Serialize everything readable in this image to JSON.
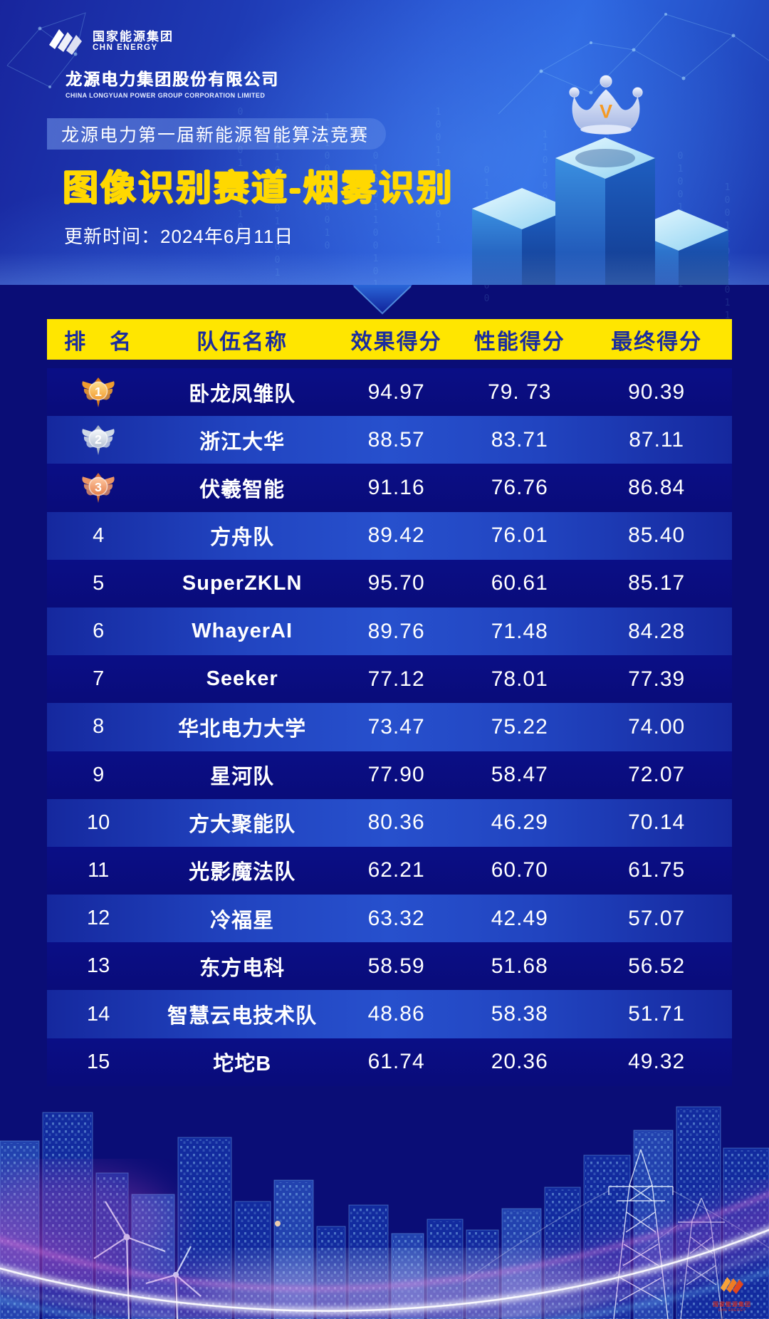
{
  "brand": {
    "group_cn": "国家能源集团",
    "group_en": "CHN ENERGY",
    "company_cn": "龙源电力集团股份有限公司",
    "company_en": "CHINA LONGYUAN POWER GROUP CORPORATION LIMITED"
  },
  "hero": {
    "competition_pill": "龙源电力第一届新能源智能算法竞赛",
    "title": "图像识别赛道-烟雾识别",
    "update_time": "更新时间：2024年6月11日",
    "crown_letter": "V"
  },
  "leaderboard": {
    "headers": {
      "rank": "排　名",
      "team": "队伍名称",
      "effect": "效果得分",
      "performance": "性能得分",
      "final": "最终得分"
    },
    "rows": [
      {
        "rank": "1",
        "medal": "gold",
        "team": "卧龙凤雏队",
        "effect": "94.97",
        "performance": "79. 73",
        "final": "90.39"
      },
      {
        "rank": "2",
        "medal": "silver",
        "team": "浙江大华",
        "effect": "88.57",
        "performance": "83.71",
        "final": "87.11"
      },
      {
        "rank": "3",
        "medal": "bronze",
        "team": "伏羲智能",
        "effect": "91.16",
        "performance": "76.76",
        "final": "86.84"
      },
      {
        "rank": "4",
        "medal": null,
        "team": "方舟队",
        "effect": "89.42",
        "performance": "76.01",
        "final": "85.40"
      },
      {
        "rank": "5",
        "medal": null,
        "team": "SuperZKLN",
        "effect": "95.70",
        "performance": "60.61",
        "final": "85.17"
      },
      {
        "rank": "6",
        "medal": null,
        "team": "WhayerAI",
        "effect": "89.76",
        "performance": "71.48",
        "final": "84.28"
      },
      {
        "rank": "7",
        "medal": null,
        "team": "Seeker",
        "effect": "77.12",
        "performance": "78.01",
        "final": "77.39"
      },
      {
        "rank": "8",
        "medal": null,
        "team": "华北电力大学",
        "effect": "73.47",
        "performance": "75.22",
        "final": "74.00"
      },
      {
        "rank": "9",
        "medal": null,
        "team": "星河队",
        "effect": "77.90",
        "performance": "58.47",
        "final": "72.07"
      },
      {
        "rank": "10",
        "medal": null,
        "team": "方大聚能队",
        "effect": "80.36",
        "performance": "46.29",
        "final": "70.14"
      },
      {
        "rank": "11",
        "medal": null,
        "team": "光影魔法队",
        "effect": "62.21",
        "performance": "60.70",
        "final": "61.75"
      },
      {
        "rank": "12",
        "medal": null,
        "team": "冷福星",
        "effect": "63.32",
        "performance": "42.49",
        "final": "57.07"
      },
      {
        "rank": "13",
        "medal": null,
        "team": "东方电科",
        "effect": "58.59",
        "performance": "51.68",
        "final": "56.52"
      },
      {
        "rank": "14",
        "medal": null,
        "team": "智慧云电技术队",
        "effect": "48.86",
        "performance": "58.38",
        "final": "51.71"
      },
      {
        "rank": "15",
        "medal": null,
        "team": "坨坨B",
        "effect": "61.74",
        "performance": "20.36",
        "final": "49.32"
      }
    ]
  },
  "colors": {
    "header_bg": "#ffe600",
    "header_text": "#1b2d9e",
    "accent_yellow": "#ffd800",
    "hero_blue": "#2a58d4",
    "navy_body": "#0a0d76",
    "row_dark": "#0a0e86",
    "row_light": "#2144c0",
    "medal_gold": "#f5a02c",
    "medal_silver": "#c9d3e2",
    "medal_bronze": "#e98a58",
    "crown_v_orange": "#f59a23"
  }
}
